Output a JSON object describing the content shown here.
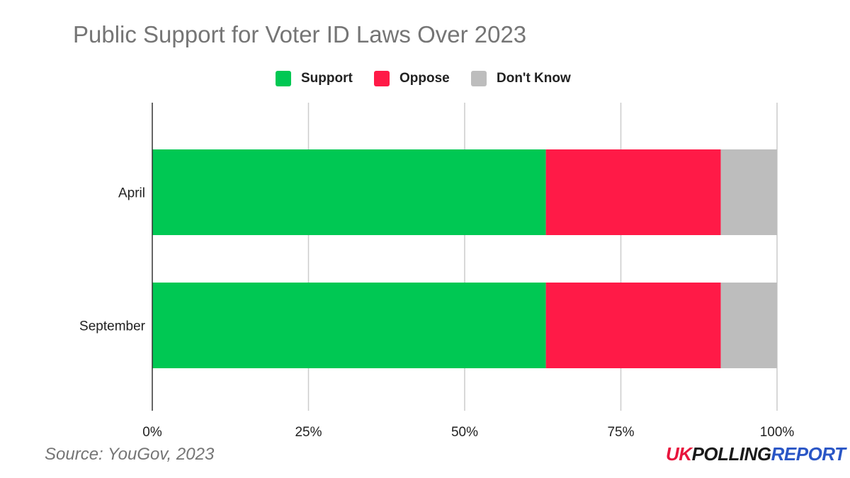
{
  "chart_data": {
    "type": "bar",
    "orientation": "horizontal",
    "stacked": true,
    "title": "Public Support for Voter ID Laws Over 2023",
    "categories": [
      "April",
      "September"
    ],
    "series": [
      {
        "name": "Support",
        "values": [
          63,
          63
        ],
        "color": "#00c853"
      },
      {
        "name": "Oppose",
        "values": [
          28,
          28
        ],
        "color": "#ff1a47"
      },
      {
        "name": "Don't Know",
        "values": [
          9,
          9
        ],
        "color": "#bdbdbd"
      }
    ],
    "xlim": [
      0,
      100
    ],
    "x_ticks": [
      "0%",
      "25%",
      "50%",
      "75%",
      "100%"
    ],
    "grid": true,
    "legend_position": "top-center"
  },
  "footer": {
    "source": "Source: YouGov, 2023",
    "brand_uk": "UK",
    "brand_polling": "POLLING",
    "brand_report": "REPORT"
  }
}
